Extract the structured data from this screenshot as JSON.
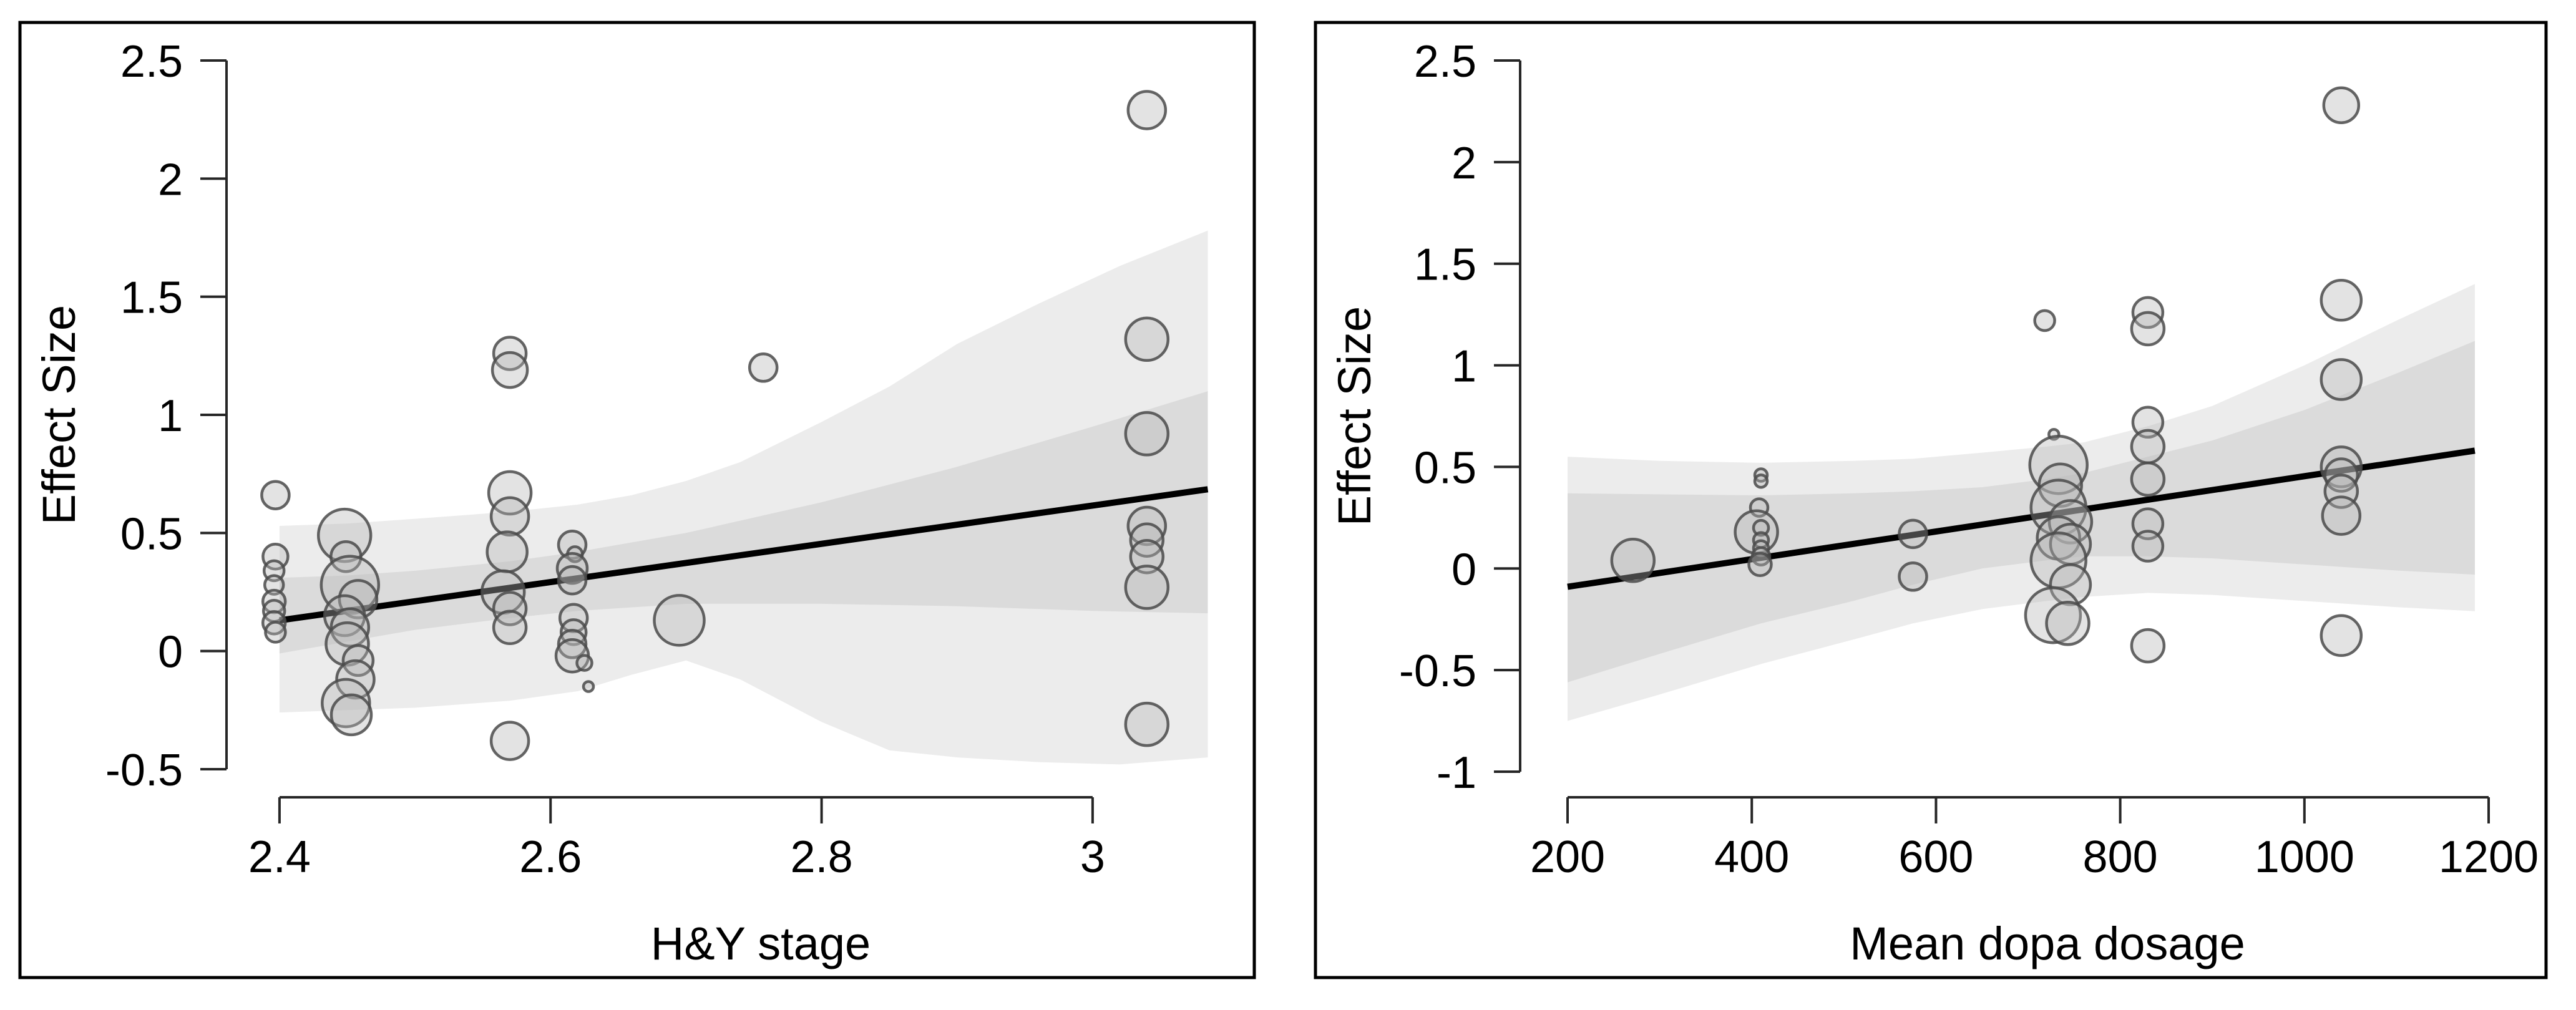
{
  "figure": {
    "background": "#ffffff",
    "description": "Two-panel meta-regression bubble plots of Effect Size"
  },
  "colors": {
    "outer_band": "#ececec",
    "inner_band": "#dbdbdb",
    "bubble_fill": "#b5b5b5",
    "bubble_stroke": "#4a4a4a",
    "regression_line": "#000000",
    "axis": "#262626",
    "panel_border": "#000000",
    "text": "#000000"
  },
  "chart_data": [
    {
      "type": "scatter",
      "subtype": "bubble-meta-regression",
      "name": "chart-hy-stage",
      "title": "",
      "xlabel": "H&Y stage",
      "ylabel": "Effect Size",
      "x_ticks": [
        2.4,
        2.6,
        2.8,
        3
      ],
      "x_tick_labels": [
        "2.4",
        "2.6",
        "2.8",
        "3"
      ],
      "y_ticks": [
        2.5,
        2,
        1.5,
        1,
        0.5,
        0,
        -0.5
      ],
      "y_tick_labels": [
        "2.5",
        "2",
        "1.5",
        "1",
        "0.5",
        "0",
        "-0.5"
      ],
      "x_range": [
        2.3609,
        3.1101
      ],
      "y_range": [
        -0.5,
        2.5
      ],
      "grid": false,
      "legend": null,
      "regression": {
        "x": [
          2.4,
          3.085
        ],
        "y": [
          0.13,
          0.685
        ]
      },
      "bands": {
        "outer": {
          "x": [
            2.4,
            2.45,
            2.5,
            2.57,
            2.62,
            2.66,
            2.7,
            2.74,
            2.8,
            2.85,
            2.9,
            2.96,
            3.02,
            3.085
          ],
          "lo": [
            -0.26,
            -0.25,
            -0.24,
            -0.21,
            -0.17,
            -0.1,
            -0.04,
            -0.12,
            -0.3,
            -0.42,
            -0.45,
            -0.47,
            -0.48,
            -0.45
          ],
          "hi": [
            0.53,
            0.54,
            0.56,
            0.59,
            0.62,
            0.66,
            0.72,
            0.8,
            0.97,
            1.12,
            1.3,
            1.47,
            1.63,
            1.78
          ]
        },
        "inner": {
          "x": [
            2.4,
            2.45,
            2.5,
            2.57,
            2.62,
            2.7,
            2.8,
            2.9,
            3.0,
            3.085
          ],
          "lo": [
            -0.01,
            0.04,
            0.09,
            0.14,
            0.17,
            0.2,
            0.2,
            0.19,
            0.17,
            0.16
          ],
          "hi": [
            0.31,
            0.32,
            0.34,
            0.38,
            0.42,
            0.5,
            0.63,
            0.78,
            0.95,
            1.1
          ]
        }
      },
      "points": [
        [
          2.397,
          0.66,
          22
        ],
        [
          2.397,
          0.4,
          20
        ],
        [
          2.396,
          0.34,
          16
        ],
        [
          2.396,
          0.28,
          15
        ],
        [
          2.396,
          0.21,
          18
        ],
        [
          2.396,
          0.17,
          17
        ],
        [
          2.396,
          0.12,
          18
        ],
        [
          2.397,
          0.08,
          16
        ],
        [
          2.448,
          0.49,
          42
        ],
        [
          2.449,
          0.4,
          24
        ],
        [
          2.452,
          0.28,
          46
        ],
        [
          2.458,
          0.22,
          30
        ],
        [
          2.448,
          0.15,
          32
        ],
        [
          2.452,
          0.1,
          30
        ],
        [
          2.45,
          0.03,
          34
        ],
        [
          2.458,
          -0.04,
          24
        ],
        [
          2.456,
          -0.12,
          30
        ],
        [
          2.449,
          -0.22,
          38
        ],
        [
          2.453,
          -0.27,
          32
        ],
        [
          2.57,
          1.26,
          26
        ],
        [
          2.57,
          1.19,
          28
        ],
        [
          2.57,
          0.67,
          34
        ],
        [
          2.57,
          0.57,
          30
        ],
        [
          2.568,
          0.42,
          32
        ],
        [
          2.565,
          0.25,
          34
        ],
        [
          2.57,
          0.18,
          26
        ],
        [
          2.57,
          0.1,
          26
        ],
        [
          2.57,
          -0.38,
          30
        ],
        [
          2.616,
          0.45,
          22
        ],
        [
          2.618,
          0.41,
          12
        ],
        [
          2.616,
          0.35,
          24
        ],
        [
          2.616,
          0.3,
          22
        ],
        [
          2.617,
          0.14,
          22
        ],
        [
          2.617,
          0.08,
          20
        ],
        [
          2.616,
          0.03,
          22
        ],
        [
          2.616,
          -0.02,
          26
        ],
        [
          2.625,
          -0.05,
          12
        ],
        [
          2.628,
          -0.15,
          8
        ],
        [
          2.695,
          0.13,
          40
        ],
        [
          2.757,
          1.2,
          22
        ],
        [
          3.04,
          2.29,
          30
        ],
        [
          3.04,
          1.32,
          34
        ],
        [
          3.04,
          0.92,
          34
        ],
        [
          3.04,
          0.53,
          30
        ],
        [
          3.04,
          0.47,
          26
        ],
        [
          3.04,
          0.4,
          26
        ],
        [
          3.04,
          0.27,
          34
        ],
        [
          3.04,
          -0.31,
          34
        ]
      ]
    },
    {
      "type": "scatter",
      "subtype": "bubble-meta-regression",
      "name": "chart-dopa-dosage",
      "title": "",
      "xlabel": "Mean dopa dosage",
      "ylabel": "Effect Size",
      "x_ticks": [
        200,
        400,
        600,
        800,
        1000,
        1200
      ],
      "x_tick_labels": [
        "200",
        "400",
        "600",
        "800",
        "1000",
        "1200"
      ],
      "y_ticks": [
        2.5,
        2,
        1.5,
        1,
        0.5,
        0,
        -0.5,
        -1
      ],
      "y_tick_labels": [
        "2.5",
        "2",
        "1.5",
        "1",
        "0.5",
        "0",
        "-0.5",
        "-1"
      ],
      "x_range": [
        148.5,
        1242
      ],
      "y_range": [
        -1,
        2.5
      ],
      "grid": false,
      "legend": null,
      "regression": {
        "x": [
          200,
          1185
        ],
        "y": [
          -0.09,
          0.58
        ]
      },
      "bands": {
        "outer": {
          "x": [
            200,
            300,
            410,
            510,
            575,
            650,
            720,
            760,
            830,
            900,
            1000,
            1100,
            1185
          ],
          "lo": [
            -0.75,
            -0.62,
            -0.47,
            -0.35,
            -0.27,
            -0.2,
            -0.16,
            -0.14,
            -0.12,
            -0.13,
            -0.16,
            -0.19,
            -0.21
          ],
          "hi": [
            0.55,
            0.53,
            0.52,
            0.53,
            0.54,
            0.57,
            0.6,
            0.62,
            0.7,
            0.8,
            1.0,
            1.22,
            1.4
          ]
        },
        "inner": {
          "x": [
            200,
            300,
            410,
            510,
            575,
            650,
            720,
            760,
            830,
            900,
            1000,
            1100,
            1185
          ],
          "lo": [
            -0.56,
            -0.42,
            -0.27,
            -0.16,
            -0.08,
            0.0,
            0.04,
            0.06,
            0.06,
            0.05,
            0.02,
            -0.01,
            -0.03
          ],
          "hi": [
            0.37,
            0.365,
            0.36,
            0.37,
            0.38,
            0.4,
            0.44,
            0.47,
            0.55,
            0.63,
            0.78,
            0.96,
            1.12
          ]
        }
      },
      "points": [
        [
          271,
          0.04,
          34
        ],
        [
          410,
          0.46,
          10
        ],
        [
          410,
          0.43,
          10
        ],
        [
          408,
          0.3,
          14
        ],
        [
          405,
          0.18,
          34
        ],
        [
          410,
          0.2,
          12
        ],
        [
          410,
          0.14,
          12
        ],
        [
          410,
          0.1,
          12
        ],
        [
          410,
          0.06,
          14
        ],
        [
          409,
          0.02,
          18
        ],
        [
          575,
          0.17,
          22
        ],
        [
          575,
          -0.04,
          22
        ],
        [
          718,
          1.22,
          16
        ],
        [
          728,
          0.66,
          8
        ],
        [
          733,
          0.51,
          46
        ],
        [
          735,
          0.41,
          34
        ],
        [
          733,
          0.3,
          44
        ],
        [
          746,
          0.23,
          34
        ],
        [
          733,
          0.15,
          34
        ],
        [
          746,
          0.12,
          32
        ],
        [
          733,
          0.04,
          44
        ],
        [
          746,
          -0.08,
          32
        ],
        [
          727,
          -0.23,
          44
        ],
        [
          743,
          -0.27,
          34
        ],
        [
          830,
          1.26,
          24
        ],
        [
          830,
          1.18,
          26
        ],
        [
          830,
          0.72,
          24
        ],
        [
          830,
          0.6,
          26
        ],
        [
          830,
          0.44,
          26
        ],
        [
          830,
          0.22,
          24
        ],
        [
          830,
          0.11,
          24
        ],
        [
          830,
          -0.38,
          26
        ],
        [
          1040,
          2.28,
          28
        ],
        [
          1040,
          1.32,
          32
        ],
        [
          1040,
          0.93,
          32
        ],
        [
          1040,
          0.5,
          32
        ],
        [
          1040,
          0.46,
          26
        ],
        [
          1040,
          0.38,
          26
        ],
        [
          1040,
          0.26,
          30
        ],
        [
          1040,
          -0.33,
          32
        ]
      ]
    }
  ]
}
